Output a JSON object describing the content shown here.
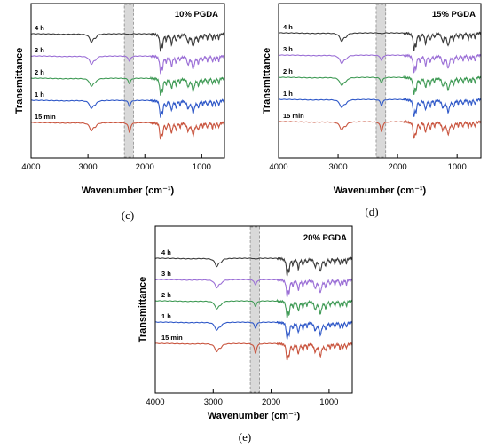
{
  "chart_data": [
    {
      "type": "line",
      "panel": "(c)",
      "title": "10% PGDA",
      "xlabel": "Wavenumber (cm⁻¹)",
      "ylabel": "Transmittance",
      "xlim": [
        4000,
        600
      ],
      "x_reversed": true,
      "xticks": [
        4000,
        3000,
        2000,
        1000
      ],
      "xtick_labels": [
        "4000",
        "3000",
        "2000",
        "1000"
      ],
      "highlight_band": [
        2360,
        2200
      ],
      "grid": false,
      "series": [
        {
          "name": "4 h",
          "color": "#3a3a3a"
        },
        {
          "name": "3 h",
          "color": "#9b6fd6"
        },
        {
          "name": "2 h",
          "color": "#3f9a55"
        },
        {
          "name": "1 h",
          "color": "#2f58c8"
        },
        {
          "name": "15 min",
          "color": "#c9553f"
        }
      ]
    },
    {
      "type": "line",
      "panel": "(d)",
      "title": "15% PGDA",
      "xlabel": "Wavenumber (cm⁻¹)",
      "ylabel": "Transmittance",
      "xlim": [
        4000,
        600
      ],
      "x_reversed": true,
      "xticks": [
        4000,
        3000,
        2000,
        1000
      ],
      "xtick_labels": [
        "4000",
        "3000",
        "2000",
        "1000"
      ],
      "highlight_band": [
        2360,
        2200
      ],
      "grid": false,
      "series": [
        {
          "name": "4 h",
          "color": "#3a3a3a"
        },
        {
          "name": "3 h",
          "color": "#9b6fd6"
        },
        {
          "name": "2 h",
          "color": "#3f9a55"
        },
        {
          "name": "1 h",
          "color": "#2f58c8"
        },
        {
          "name": "15 min",
          "color": "#c9553f"
        }
      ]
    },
    {
      "type": "line",
      "panel": "(e)",
      "title": "20% PGDA",
      "xlabel": "Wavenumber (cm⁻¹)",
      "ylabel": "Transmittance",
      "xlim": [
        4000,
        600
      ],
      "x_reversed": true,
      "xticks": [
        4000,
        3000,
        2000,
        1000
      ],
      "xtick_labels": [
        "4000",
        "3000",
        "2000",
        "1000"
      ],
      "highlight_band": [
        2360,
        2200
      ],
      "grid": false,
      "series": [
        {
          "name": "4 h",
          "color": "#3a3a3a"
        },
        {
          "name": "3 h",
          "color": "#9b6fd6"
        },
        {
          "name": "2 h",
          "color": "#3f9a55"
        },
        {
          "name": "1 h",
          "color": "#2f58c8"
        },
        {
          "name": "15 min",
          "color": "#c9553f"
        }
      ]
    }
  ],
  "ir_peaks": [
    {
      "pos": 3420,
      "w": 220,
      "d": 0.04
    },
    {
      "pos": 2940,
      "w": 38,
      "d": 0.55
    },
    {
      "pos": 2870,
      "w": 30,
      "d": 0.2
    },
    {
      "pos": 2270,
      "w": 22,
      "d": 0.7
    },
    {
      "pos": 1725,
      "w": 16,
      "d": 1.1
    },
    {
      "pos": 1690,
      "w": 14,
      "d": 0.75
    },
    {
      "pos": 1625,
      "w": 14,
      "d": 0.4
    },
    {
      "pos": 1530,
      "w": 18,
      "d": 0.7
    },
    {
      "pos": 1450,
      "w": 16,
      "d": 0.45
    },
    {
      "pos": 1380,
      "w": 12,
      "d": 0.3
    },
    {
      "pos": 1240,
      "w": 22,
      "d": 0.55
    },
    {
      "pos": 1150,
      "w": 26,
      "d": 0.85
    },
    {
      "pos": 1060,
      "w": 18,
      "d": 0.45
    },
    {
      "pos": 980,
      "w": 12,
      "d": 0.3
    },
    {
      "pos": 900,
      "w": 14,
      "d": 0.35
    },
    {
      "pos": 810,
      "w": 12,
      "d": 0.4
    },
    {
      "pos": 760,
      "w": 10,
      "d": 0.3
    },
    {
      "pos": 700,
      "w": 12,
      "d": 0.35
    }
  ],
  "series_nco_fraction": [
    0.1,
    0.55,
    0.55,
    0.6,
    1.0
  ]
}
